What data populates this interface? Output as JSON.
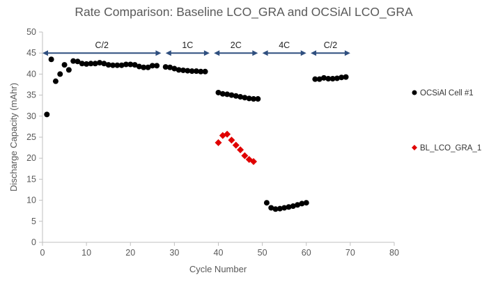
{
  "chart_data": {
    "type": "scatter",
    "title": "Rate Comparison:  Baseline LCO_GRA and OCSiAl LCO_GRA",
    "xlabel": "Cycle Number",
    "ylabel": "Discharge Capacity (mAhr)",
    "xlim": [
      0,
      80
    ],
    "ylim": [
      0,
      50
    ],
    "x_ticks": [
      0,
      10,
      20,
      30,
      40,
      50,
      60,
      70,
      80
    ],
    "y_ticks": [
      0,
      5,
      10,
      15,
      20,
      25,
      30,
      35,
      40,
      45,
      50
    ],
    "grid": false,
    "legend_position": "right",
    "series": [
      {
        "name": "OCSiAl Cell #1",
        "marker": "circle",
        "color": "#000000",
        "x": [
          1,
          2,
          3,
          4,
          5,
          6,
          7,
          8,
          9,
          10,
          11,
          12,
          13,
          14,
          15,
          16,
          17,
          18,
          19,
          20,
          21,
          22,
          23,
          24,
          25,
          26,
          28,
          29,
          30,
          31,
          32,
          33,
          34,
          35,
          36,
          37,
          40,
          41,
          42,
          43,
          44,
          45,
          46,
          47,
          48,
          49,
          51,
          52,
          53,
          54,
          55,
          56,
          57,
          58,
          59,
          60,
          62,
          63,
          64,
          65,
          66,
          67,
          68,
          69
        ],
        "y": [
          30.4,
          43.5,
          38.3,
          40,
          42.2,
          41,
          43.1,
          43,
          42.5,
          42.4,
          42.5,
          42.5,
          42.7,
          42.5,
          42.2,
          42.1,
          42.1,
          42.1,
          42.3,
          42.3,
          42.2,
          41.8,
          41.6,
          41.6,
          42,
          42,
          41.7,
          41.6,
          41.3,
          41,
          40.9,
          40.8,
          40.7,
          40.7,
          40.6,
          40.6,
          35.6,
          35.3,
          35.2,
          35,
          34.8,
          34.6,
          34.4,
          34.2,
          34.1,
          34.1,
          9.4,
          8.2,
          7.9,
          8,
          8.2,
          8.4,
          8.6,
          8.9,
          9.2,
          9.4,
          38.8,
          38.8,
          39.1,
          38.9,
          38.9,
          39,
          39.2,
          39.3
        ]
      },
      {
        "name": "BL_LCO_GRA_1",
        "marker": "diamond",
        "color": "#E00000",
        "x": [
          40,
          41,
          42,
          43,
          44,
          45,
          46,
          47,
          48
        ],
        "y": [
          23.7,
          25.4,
          25.7,
          24.3,
          23.1,
          22,
          20.6,
          19.7,
          19.2
        ]
      }
    ],
    "annotations": [
      {
        "label": "C/2",
        "x_start": 0,
        "x_end": 27,
        "y": 45
      },
      {
        "label": "1C",
        "x_start": 28,
        "x_end": 38,
        "y": 45
      },
      {
        "label": "2C",
        "x_start": 39,
        "x_end": 49,
        "y": 45
      },
      {
        "label": "4C",
        "x_start": 50,
        "x_end": 60,
        "y": 45
      },
      {
        "label": "C/2",
        "x_start": 61,
        "x_end": 70,
        "y": 45
      }
    ],
    "colors": {
      "axis": "#bfbfbf",
      "arrow": "#2F4F7F",
      "text": "#595959"
    }
  }
}
